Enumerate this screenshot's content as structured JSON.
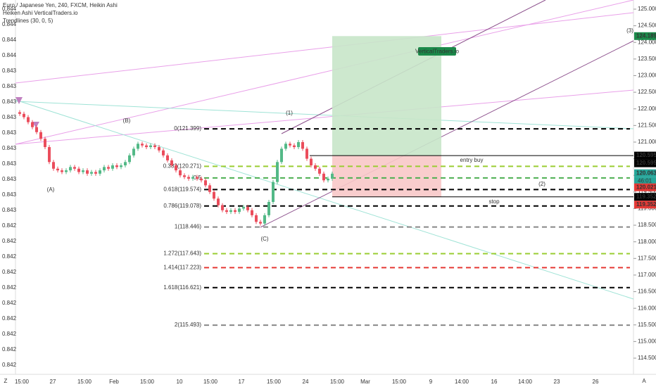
{
  "header": {
    "symbol": "Euro / Japanese Yen, 240, FXCM, Heikin Ashi",
    "indicator": "Heiken Ashi VerticalTraders.io",
    "trendlines": "Trendlines (30, 0, 5)"
  },
  "left_axis": [
    "0.844",
    "0.844",
    "0.844",
    "0.844",
    "0.843",
    "0.843",
    "0.843",
    "0.843",
    "0.843",
    "0.843",
    "0.843",
    "0.843",
    "0.843",
    "0.843",
    "0.842",
    "0.842",
    "0.842",
    "0.842",
    "0.842",
    "0.842",
    "0.842",
    "0.842",
    "0.842",
    "0.842"
  ],
  "price_axis": {
    "ylim": [
      114.5,
      125
    ],
    "ticks": [
      {
        "value": 125,
        "label": "125.000"
      },
      {
        "value": 124.5,
        "label": "124.500"
      },
      {
        "value": 124,
        "label": "124.000"
      },
      {
        "value": 123.5,
        "label": "123.500"
      },
      {
        "value": 123,
        "label": "123.000"
      },
      {
        "value": 122.5,
        "label": "122.500"
      },
      {
        "value": 122,
        "label": "122.000"
      },
      {
        "value": 121.5,
        "label": "121.500"
      },
      {
        "value": 121,
        "label": "121.000"
      },
      {
        "value": 120.5,
        "label": "120.500"
      },
      {
        "value": 120,
        "label": "120.000"
      },
      {
        "value": 119.5,
        "label": "119.500"
      },
      {
        "value": 119,
        "label": "119.000"
      },
      {
        "value": 118.5,
        "label": "118.500"
      },
      {
        "value": 118,
        "label": "118.000"
      },
      {
        "value": 117.5,
        "label": "117.500"
      },
      {
        "value": 117,
        "label": "117.000"
      },
      {
        "value": 116.5,
        "label": "116.500"
      },
      {
        "value": 116,
        "label": "116.000"
      },
      {
        "value": 115.5,
        "label": "115.500"
      },
      {
        "value": 115,
        "label": "115.000"
      },
      {
        "value": 114.5,
        "label": "114.500"
      }
    ]
  },
  "time_axis": [
    "15:00",
    "27",
    "15:00",
    "Feb",
    "15:00",
    "10",
    "15:00",
    "17",
    "15:00",
    "24",
    "15:00",
    "Mar",
    "15:00",
    "9",
    "14:00",
    "16",
    "14:00",
    "23",
    "26"
  ],
  "candles": {
    "closes": [
      121.85,
      121.75,
      121.6,
      121.45,
      121.3,
      121.1,
      120.85,
      120.4,
      120.2,
      120.15,
      120.1,
      120.15,
      120.25,
      120.2,
      120.1,
      120.15,
      120.05,
      120.1,
      120.05,
      120.15,
      120.25,
      120.2,
      120.3,
      120.25,
      120.3,
      120.4,
      120.6,
      120.8,
      120.95,
      120.9,
      120.85,
      120.9,
      120.85,
      120.75,
      120.6,
      120.45,
      120.3,
      120.15,
      120.0,
      119.95,
      119.9,
      119.95,
      119.9,
      119.85,
      119.7,
      119.5,
      119.3,
      119.1,
      118.95,
      118.9,
      118.95,
      118.9,
      119.0,
      119.05,
      118.95,
      118.8,
      118.6,
      118.55,
      118.8,
      119.2,
      119.8,
      120.4,
      120.8,
      120.95,
      120.9,
      120.85,
      121.0,
      120.8,
      120.5,
      120.3,
      120.2,
      120.05,
      119.85,
      119.9,
      120.05
    ]
  },
  "fib_levels": [
    {
      "label": "0(121.399)",
      "price": 121.399,
      "color": "#000000"
    },
    {
      "label": "0.382(120.271)",
      "price": 120.271,
      "color": "#9acd32"
    },
    {
      "label": "0.5",
      "price": 119.922,
      "color": "#4caf50"
    },
    {
      "label": "0.618(119.574)",
      "price": 119.574,
      "color": "#000000"
    },
    {
      "label": "0.786(119.078)",
      "price": 119.078,
      "color": "#000000"
    },
    {
      "label": "1(118.446)",
      "price": 118.446,
      "color": "#888888"
    },
    {
      "label": "1.272(117.643)",
      "price": 117.643,
      "color": "#9acd32"
    },
    {
      "label": "1.414(117.223)",
      "price": 117.223,
      "color": "#e53935"
    },
    {
      "label": "1.618(116.621)",
      "price": 116.621,
      "color": "#000000"
    },
    {
      "label": "2(115.493)",
      "price": 115.493,
      "color": "#888888"
    }
  ],
  "position": {
    "target": 124.189,
    "entry": 120.595,
    "stop": 119.352,
    "entry_label": "entry buy",
    "stop_label": "stop",
    "badge": "VerticalTraders.io"
  },
  "price_tags": [
    {
      "price": 124.189,
      "color": "#1b8a4a"
    },
    {
      "price": 120.595,
      "color": "#000000"
    },
    {
      "price": 120.595,
      "color": "#000000"
    },
    {
      "price": 120.063,
      "color": "#26a69a"
    },
    {
      "price": 120.021,
      "color": "#e53935"
    },
    {
      "price": 119.352,
      "color": "#000000"
    },
    {
      "price": 119.352,
      "color": "#e53935"
    }
  ],
  "countdown": "46:01",
  "annotations": [
    "(A)",
    "(B)",
    "(C)",
    "(1)",
    "(2)",
    "(3)"
  ],
  "footer": {
    "left": "Z",
    "right": "A"
  }
}
